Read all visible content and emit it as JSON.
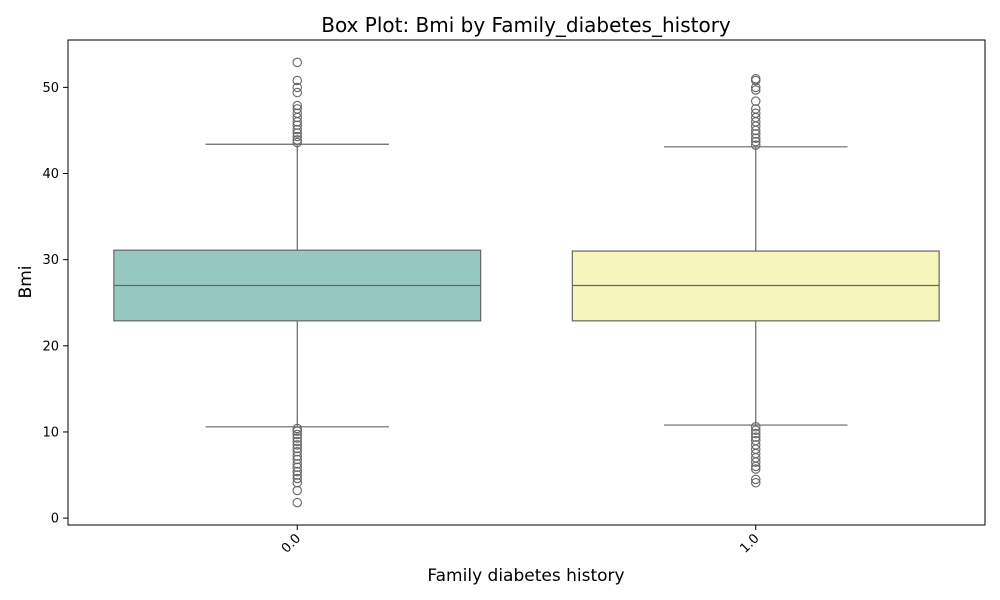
{
  "chart_data": {
    "type": "box",
    "title": "Box Plot: Bmi by Family_diabetes_history",
    "xlabel": "Family diabetes history",
    "ylabel": "Bmi",
    "ylim": [
      -0.8,
      55.5
    ],
    "yticks": [
      0,
      10,
      20,
      30,
      40,
      50
    ],
    "grid": false,
    "categories": [
      "0.0",
      "1.0"
    ],
    "colors": [
      "#96cac1",
      "#f6f6bc"
    ],
    "line_color": "#666666",
    "boxes": [
      {
        "category": "0.0",
        "whisker_low": 10.6,
        "q1": 22.9,
        "median": 27.0,
        "q3": 31.1,
        "whisker_high": 43.4,
        "outliers": [
          1.8,
          3.2,
          4.1,
          4.6,
          5.0,
          5.4,
          5.9,
          6.3,
          6.8,
          7.2,
          7.7,
          8.1,
          8.5,
          8.9,
          9.3,
          9.7,
          10.1,
          10.4,
          43.6,
          43.9,
          44.3,
          44.7,
          45.1,
          45.6,
          46.0,
          46.5,
          47.0,
          47.5,
          47.9,
          49.4,
          50.0,
          50.8,
          52.9
        ]
      },
      {
        "category": "1.0",
        "whisker_low": 10.8,
        "q1": 22.9,
        "median": 27.0,
        "q3": 31.0,
        "whisker_high": 43.1,
        "outliers": [
          4.1,
          4.5,
          5.7,
          6.0,
          6.5,
          7.0,
          7.5,
          8.0,
          8.5,
          9.0,
          9.4,
          9.8,
          10.2,
          10.6,
          43.3,
          43.7,
          44.1,
          44.6,
          45.0,
          45.5,
          46.0,
          46.5,
          47.0,
          47.5,
          48.4,
          49.7,
          50.0,
          50.8,
          51.0
        ]
      }
    ]
  }
}
